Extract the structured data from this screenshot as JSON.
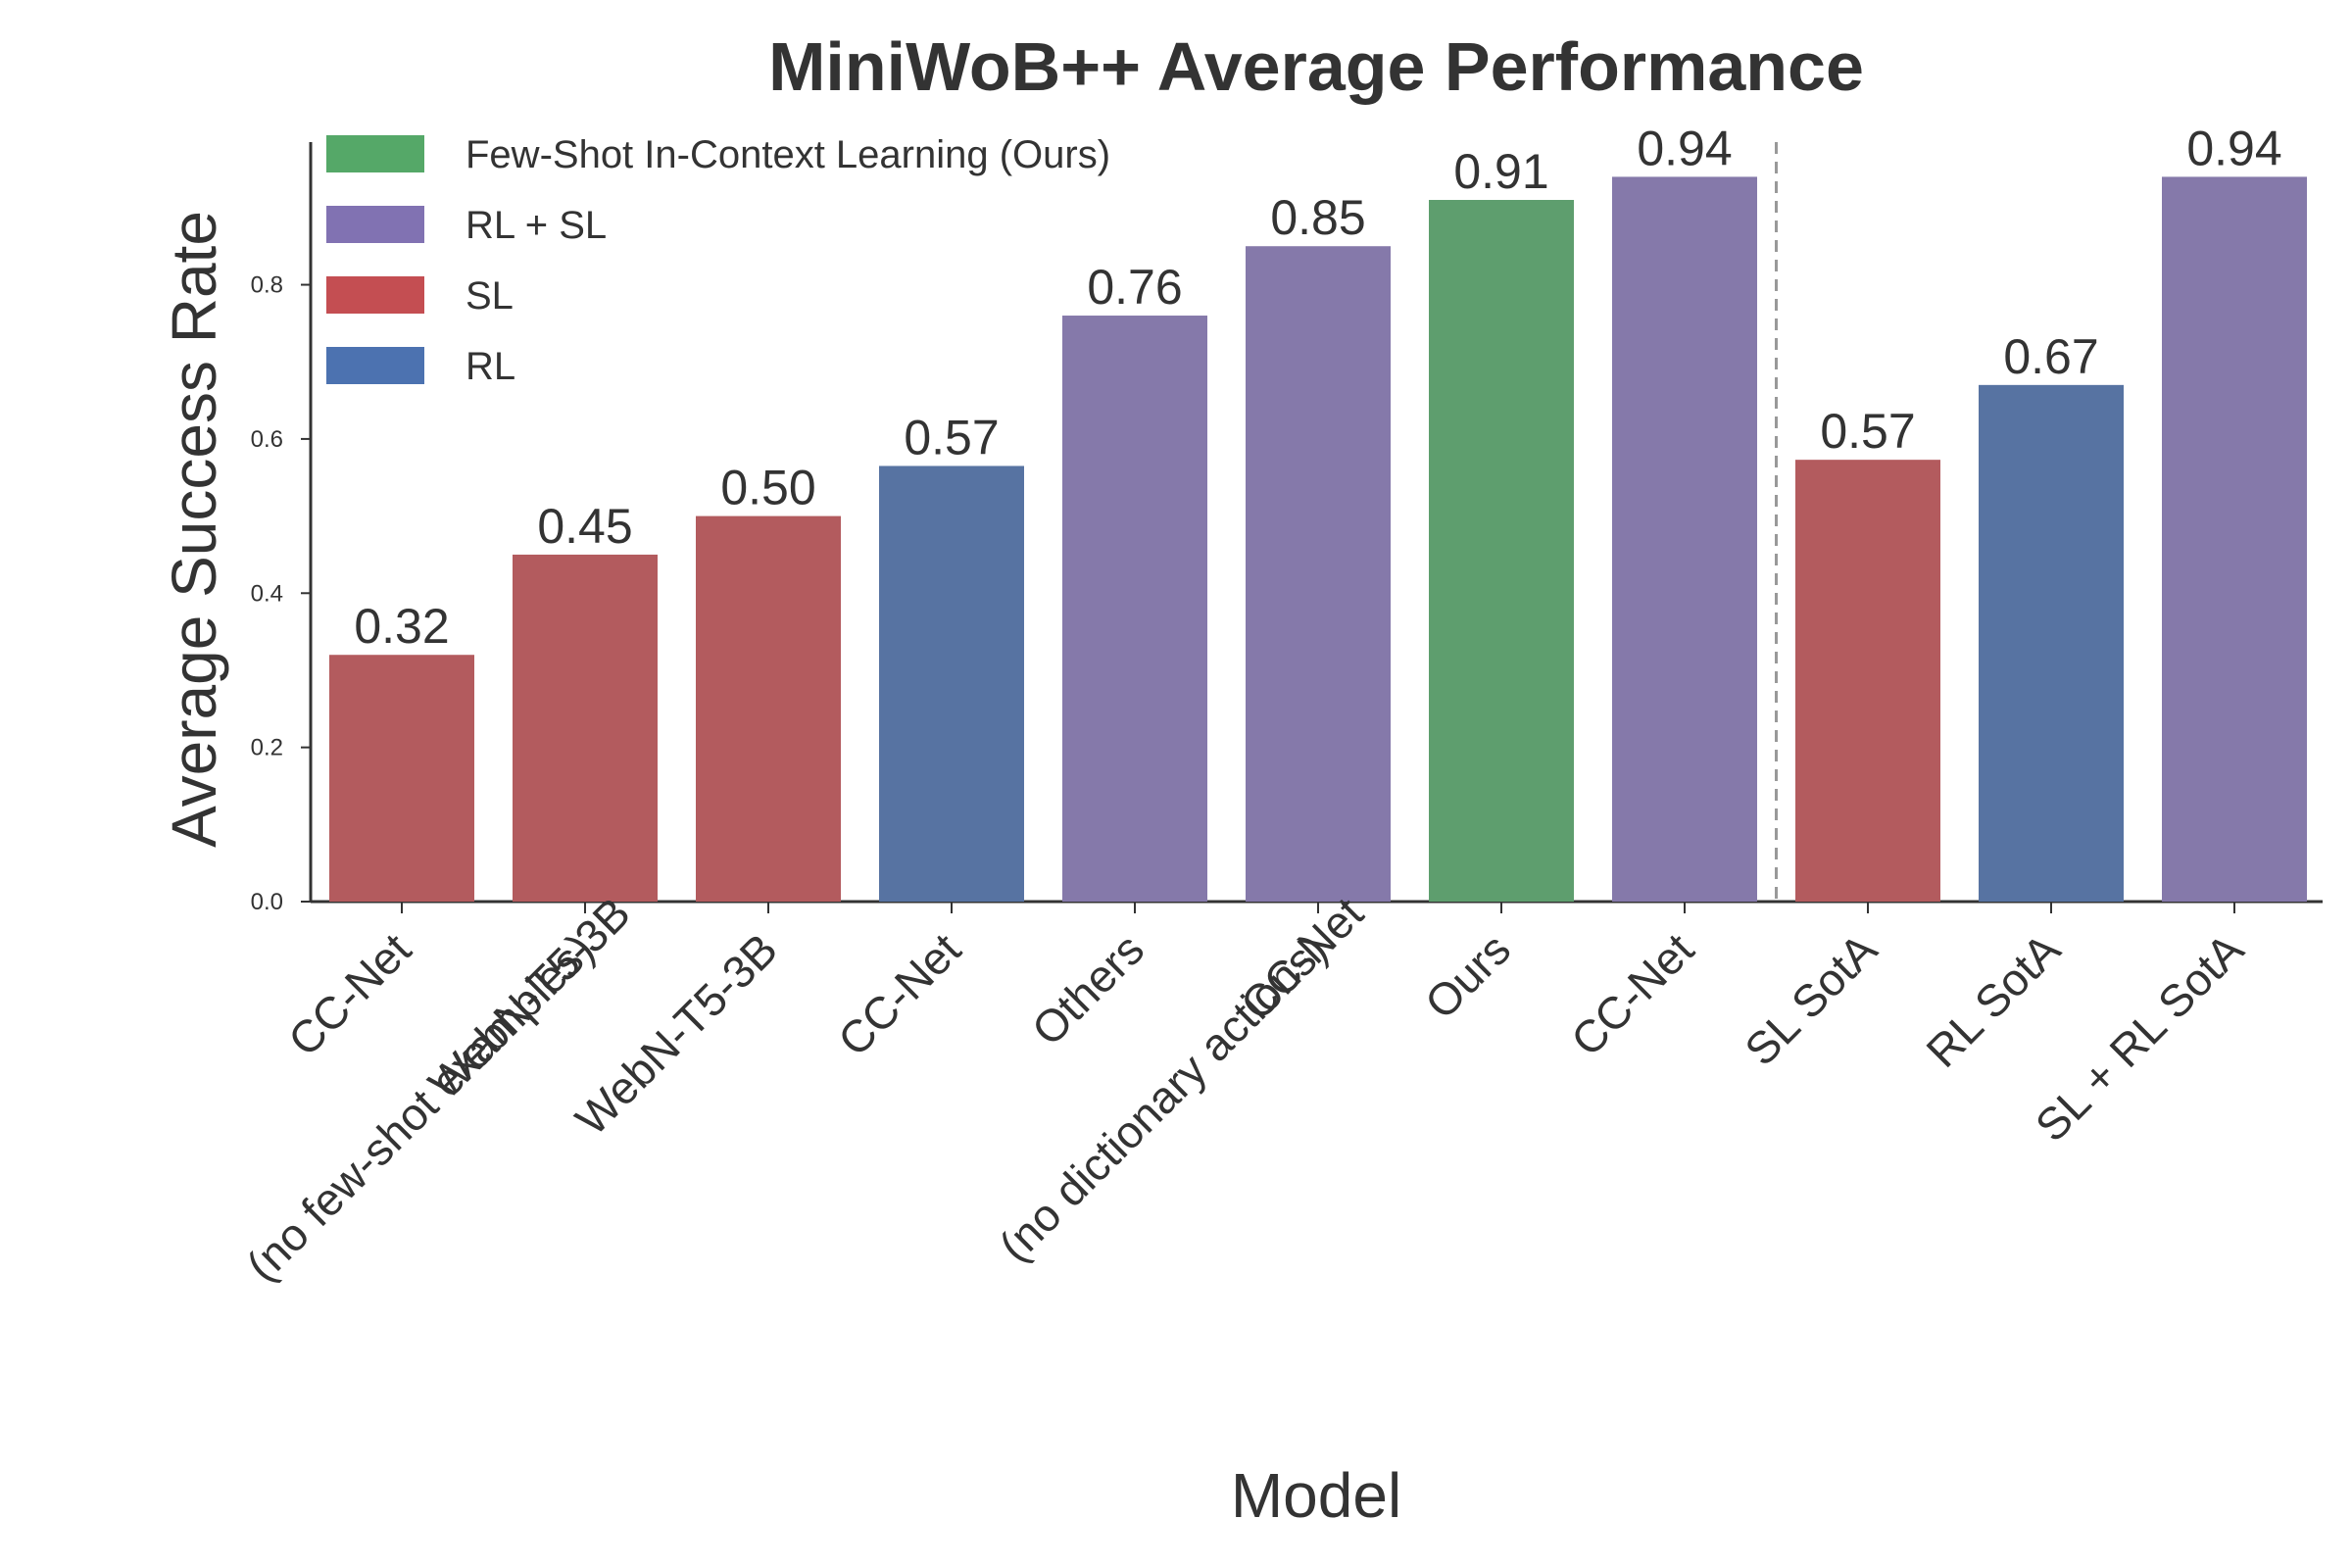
{
  "chart_data": {
    "type": "bar",
    "title": "MiniWoB++ Average Performance",
    "xlabel": "Model",
    "ylabel": "Average Success Rate",
    "ylim": [
      0,
      0.985
    ],
    "yticks": [
      "0.0",
      "0.2",
      "0.4",
      "0.6",
      "0.8"
    ],
    "grid": false,
    "legend_position": "top-left",
    "legend": [
      {
        "label": "Few-Shot In-Context Learning (Ours)",
        "color": "#55a868"
      },
      {
        "label": "RL + SL",
        "color": "#8172b2"
      },
      {
        "label": "SL",
        "color": "#c44e52"
      },
      {
        "label": "RL",
        "color": "#4c72b0"
      }
    ],
    "bars": [
      {
        "category": [
          "CC-Net"
        ],
        "value": 0.32,
        "value_label": "0.32",
        "group": "SL"
      },
      {
        "category": [
          "WebN-T5-3B",
          "(no few-shot examples)"
        ],
        "value": 0.45,
        "value_label": "0.45",
        "group": "SL"
      },
      {
        "category": [
          "WebN-T5-3B"
        ],
        "value": 0.5,
        "value_label": "0.50",
        "group": "SL"
      },
      {
        "category": [
          "CC-Net"
        ],
        "value": 0.565,
        "value_label": "0.57",
        "group": "RL"
      },
      {
        "category": [
          "Others"
        ],
        "value": 0.76,
        "value_label": "0.76",
        "group": "RL + SL"
      },
      {
        "category": [
          "CC-Net",
          "(no dictionary actions)"
        ],
        "value": 0.85,
        "value_label": "0.85",
        "group": "RL + SL"
      },
      {
        "category": [
          "Ours"
        ],
        "value": 0.91,
        "value_label": "0.91",
        "group": "Few-Shot In-Context Learning (Ours)"
      },
      {
        "category": [
          "CC-Net"
        ],
        "value": 0.94,
        "value_label": "0.94",
        "group": "RL + SL"
      },
      {
        "category": [
          "SL SotA"
        ],
        "value": 0.573,
        "value_label": "0.57",
        "group": "SL"
      },
      {
        "category": [
          "RL SotA"
        ],
        "value": 0.67,
        "value_label": "0.67",
        "group": "RL"
      },
      {
        "category": [
          "SL + RL SotA"
        ],
        "value": 0.94,
        "value_label": "0.94",
        "group": "RL + SL"
      }
    ],
    "separator_after_index": 7,
    "bar_colors": {
      "Few-Shot In-Context Learning (Ours)": "#5e9e6e",
      "RL + SL": "#8579aa",
      "SL": "#b35b5e",
      "RL": "#5773a2"
    }
  }
}
